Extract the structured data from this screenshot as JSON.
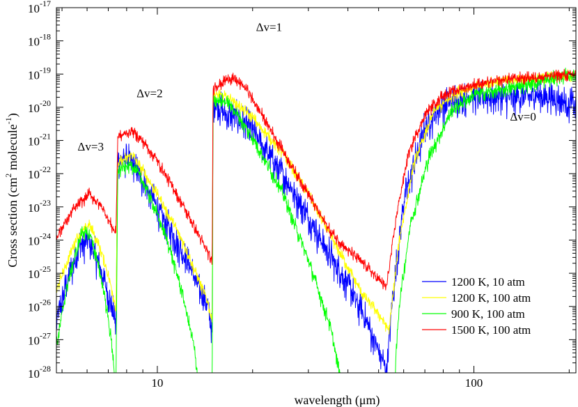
{
  "chart_data": {
    "type": "line",
    "title": "",
    "xlabel": "wavelength (μm)",
    "ylabel": "Cross section (cm² molecule⁻¹)",
    "ylabel_parts": {
      "pre": "Cross section (cm",
      "sup1": "2",
      "mid": " molecule",
      "sup2": "-1",
      "post": ")"
    },
    "x_scale": "log",
    "y_scale": "log",
    "xlim": [
      4.8,
      210
    ],
    "ylim": [
      1e-28,
      1e-17
    ],
    "x_ticks": [
      {
        "value": 10,
        "label": "10"
      },
      {
        "value": 100,
        "label": "100"
      }
    ],
    "y_ticks": [
      {
        "exp": -28,
        "base": "10",
        "sup": "-28"
      },
      {
        "exp": -27,
        "base": "10",
        "sup": "-27"
      },
      {
        "exp": -26,
        "base": "10",
        "sup": "-26"
      },
      {
        "exp": -25,
        "base": "10",
        "sup": "-25"
      },
      {
        "exp": -24,
        "base": "10",
        "sup": "-24"
      },
      {
        "exp": -23,
        "base": "10",
        "sup": "-23"
      },
      {
        "exp": -22,
        "base": "10",
        "sup": "-22"
      },
      {
        "exp": -21,
        "base": "10",
        "sup": "-21"
      },
      {
        "exp": -20,
        "base": "10",
        "sup": "-20"
      },
      {
        "exp": -19,
        "base": "10",
        "sup": "-19"
      },
      {
        "exp": -18,
        "base": "10",
        "sup": "-18"
      },
      {
        "exp": -17,
        "base": "10",
        "sup": "-17"
      }
    ],
    "annotations": [
      {
        "text": "Δv=3",
        "x": 5.6,
        "log10_y": -21.3
      },
      {
        "text": "Δv=2",
        "x": 8.6,
        "log10_y": -19.7
      },
      {
        "text": "Δv=1",
        "x": 20.5,
        "log10_y": -17.7
      },
      {
        "text": "Δv=0",
        "x": 130,
        "log10_y": -20.4
      }
    ],
    "legend_position": "bottom-right",
    "series": [
      {
        "name": "1200 K, 10 atm",
        "color": "#0000ff",
        "noise": 0.62,
        "points": [
          [
            4.8,
            -26.4
          ],
          [
            5.2,
            -25.2
          ],
          [
            5.7,
            -24.1
          ],
          [
            6.1,
            -24.0
          ],
          [
            6.6,
            -24.8
          ],
          [
            7.2,
            -26.0
          ],
          [
            7.4,
            -26.6
          ],
          [
            7.5,
            -21.5
          ],
          [
            8.3,
            -21.6
          ],
          [
            9.0,
            -22.2
          ],
          [
            10.0,
            -23.0
          ],
          [
            11.5,
            -24.0
          ],
          [
            13.0,
            -25.0
          ],
          [
            14.5,
            -26.0
          ],
          [
            14.9,
            -26.8
          ],
          [
            15.0,
            -19.8
          ],
          [
            16.5,
            -20.2
          ],
          [
            18.0,
            -20.3
          ],
          [
            20.0,
            -20.7
          ],
          [
            25.0,
            -22.0
          ],
          [
            30.0,
            -23.3
          ],
          [
            35.0,
            -24.4
          ],
          [
            40.0,
            -25.3
          ],
          [
            45.0,
            -26.3
          ],
          [
            50.0,
            -27.3
          ],
          [
            53.0,
            -27.9
          ],
          [
            55.0,
            -26.0
          ],
          [
            60.0,
            -22.8
          ],
          [
            70.0,
            -20.6
          ],
          [
            80.0,
            -19.9
          ],
          [
            100.0,
            -19.6
          ],
          [
            130.0,
            -19.7
          ],
          [
            160.0,
            -19.6
          ],
          [
            210.0,
            -19.9
          ]
        ]
      },
      {
        "name": "1200 K, 100 atm",
        "color": "#ffff00",
        "noise": 0.22,
        "points": [
          [
            4.8,
            -25.5
          ],
          [
            5.5,
            -24.0
          ],
          [
            6.1,
            -23.5
          ],
          [
            6.7,
            -24.4
          ],
          [
            7.2,
            -25.5
          ],
          [
            7.4,
            -26.1
          ],
          [
            7.5,
            -21.7
          ],
          [
            8.3,
            -21.4
          ],
          [
            9.0,
            -21.9
          ],
          [
            10.0,
            -22.6
          ],
          [
            12.0,
            -24.0
          ],
          [
            14.5,
            -25.9
          ],
          [
            14.9,
            -26.5
          ],
          [
            15.0,
            -19.6
          ],
          [
            17.0,
            -19.7
          ],
          [
            20.0,
            -20.3
          ],
          [
            25.0,
            -21.4
          ],
          [
            30.0,
            -22.6
          ],
          [
            35.0,
            -23.8
          ],
          [
            40.0,
            -24.8
          ],
          [
            45.0,
            -25.7
          ],
          [
            50.0,
            -26.2
          ],
          [
            54.0,
            -26.7
          ],
          [
            58.0,
            -24.0
          ],
          [
            65.0,
            -21.6
          ],
          [
            75.0,
            -20.1
          ],
          [
            90.0,
            -19.5
          ],
          [
            120.0,
            -19.2
          ],
          [
            210.0,
            -19.0
          ]
        ]
      },
      {
        "name": "900 K, 100 atm",
        "color": "#00ff00",
        "noise": 0.28,
        "points": [
          [
            4.8,
            -27.2
          ],
          [
            5.2,
            -25.3
          ],
          [
            5.8,
            -23.7
          ],
          [
            6.2,
            -23.9
          ],
          [
            6.8,
            -25.6
          ],
          [
            7.2,
            -27.2
          ],
          [
            7.4,
            -28.5
          ],
          [
            7.5,
            -21.9
          ],
          [
            8.3,
            -21.7
          ],
          [
            9.0,
            -22.2
          ],
          [
            10.0,
            -23.2
          ],
          [
            11.0,
            -24.3
          ],
          [
            12.0,
            -25.6
          ],
          [
            13.0,
            -27.1
          ],
          [
            13.6,
            -28.5
          ],
          [
            14.9,
            -28.5
          ],
          [
            15.0,
            -19.7
          ],
          [
            17.0,
            -19.9
          ],
          [
            20.0,
            -20.9
          ],
          [
            25.0,
            -22.6
          ],
          [
            30.0,
            -24.6
          ],
          [
            35.0,
            -26.5
          ],
          [
            38.0,
            -28.2
          ],
          [
            40.0,
            -28.5
          ],
          [
            56.0,
            -28.5
          ],
          [
            58.0,
            -26.0
          ],
          [
            63.0,
            -23.5
          ],
          [
            72.0,
            -21.5
          ],
          [
            85.0,
            -20.1
          ],
          [
            100.0,
            -19.6
          ],
          [
            130.0,
            -19.4
          ],
          [
            210.0,
            -19.0
          ]
        ]
      },
      {
        "name": "1500 K, 100 atm",
        "color": "#ff0000",
        "noise": 0.22,
        "points": [
          [
            4.8,
            -23.9
          ],
          [
            5.4,
            -23.1
          ],
          [
            6.1,
            -22.6
          ],
          [
            6.7,
            -23.0
          ],
          [
            7.2,
            -23.6
          ],
          [
            7.4,
            -23.8
          ],
          [
            7.5,
            -20.9
          ],
          [
            8.3,
            -20.7
          ],
          [
            9.0,
            -21.0
          ],
          [
            10.0,
            -21.6
          ],
          [
            12.0,
            -22.9
          ],
          [
            14.5,
            -24.4
          ],
          [
            14.9,
            -24.7
          ],
          [
            15.0,
            -19.4
          ],
          [
            17.0,
            -19.1
          ],
          [
            19.0,
            -19.4
          ],
          [
            22.0,
            -20.4
          ],
          [
            26.0,
            -21.6
          ],
          [
            30.0,
            -22.6
          ],
          [
            35.0,
            -23.7
          ],
          [
            40.0,
            -24.3
          ],
          [
            45.0,
            -24.7
          ],
          [
            50.0,
            -25.2
          ],
          [
            53.0,
            -25.4
          ],
          [
            57.0,
            -23.2
          ],
          [
            62.0,
            -21.4
          ],
          [
            70.0,
            -20.2
          ],
          [
            80.0,
            -19.6
          ],
          [
            100.0,
            -19.3
          ],
          [
            140.0,
            -19.1
          ],
          [
            210.0,
            -19.0
          ]
        ]
      }
    ]
  }
}
